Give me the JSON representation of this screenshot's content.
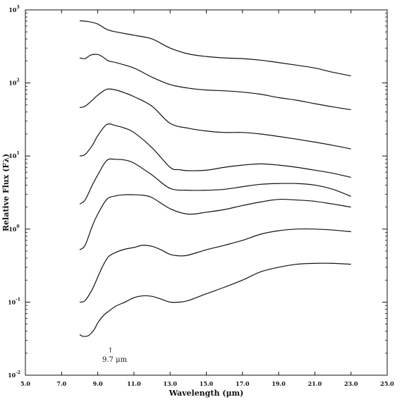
{
  "chart_data": {
    "type": "line",
    "title": "",
    "xlabel": "Wavelength (μm)",
    "ylabel": "Relative Flux (Fλ)",
    "xlim": [
      5.0,
      25.0
    ],
    "ylim_log10": [
      -2,
      3
    ],
    "y_scale": "log",
    "grid": false,
    "legend": "none",
    "x_ticks": [
      "5.0",
      "7.0",
      "9.0",
      "11.0",
      "13.0",
      "15.0",
      "17.0",
      "19.0",
      "21.0",
      "23.0",
      "25.0"
    ],
    "y_ticks": [
      {
        "base": "10",
        "exp": "-2",
        "value": 0.01
      },
      {
        "base": "10",
        "exp": "-1",
        "value": 0.1
      },
      {
        "base": "10",
        "exp": "0",
        "value": 1
      },
      {
        "base": "10",
        "exp": "1",
        "value": 10
      },
      {
        "base": "10",
        "exp": "2",
        "value": 100
      },
      {
        "base": "10",
        "exp": "3",
        "value": 1000
      }
    ],
    "annotation": {
      "text": "9.7 μm",
      "arrow": "↑",
      "x": 9.7
    },
    "series": [
      {
        "x": [
          8.0,
          8.5,
          9.0,
          9.5,
          10.0,
          11.0,
          12.0,
          13.0,
          14.0,
          15.0,
          16.0,
          17.0,
          18.0,
          19.0,
          20.0,
          21.0,
          22.0,
          23.0
        ],
        "y": [
          710,
          690,
          640,
          540,
          500,
          450,
          400,
          300,
          250,
          230,
          220,
          215,
          205,
          190,
          175,
          160,
          140,
          125
        ]
      },
      {
        "x": [
          8.0,
          8.3,
          8.6,
          9.0,
          9.3,
          9.6,
          10.0,
          11.0,
          12.0,
          13.0,
          14.0,
          15.0,
          16.0,
          17.0,
          18.0,
          19.0,
          20.0,
          21.0,
          22.0,
          23.0
        ],
        "y": [
          220,
          215,
          240,
          245,
          225,
          200,
          190,
          160,
          120,
          95,
          85,
          80,
          78,
          75,
          70,
          63,
          58,
          52,
          47,
          43
        ]
      },
      {
        "x": [
          8.0,
          8.3,
          8.7,
          9.0,
          9.5,
          10.0,
          10.5,
          11.0,
          12.0,
          13.0,
          14.0,
          15.0,
          16.0,
          17.0,
          18.0,
          19.0,
          20.0,
          21.0,
          22.0,
          23.0
        ],
        "y": [
          46,
          48,
          58,
          68,
          82,
          80,
          73,
          65,
          48,
          28,
          24,
          22,
          21,
          21,
          20,
          18.5,
          17,
          15.5,
          14,
          12.5
        ]
      },
      {
        "x": [
          8.0,
          8.3,
          8.7,
          9.0,
          9.5,
          10.0,
          10.5,
          11.0,
          12.0,
          13.0,
          13.5,
          14.0,
          15.0,
          16.0,
          17.0,
          18.0,
          19.0,
          20.0,
          21.0,
          22.0,
          23.0
        ],
        "y": [
          10,
          10.5,
          14,
          19,
          27,
          26,
          24,
          21,
          13,
          7,
          6.5,
          6.3,
          6.4,
          7.0,
          7.5,
          7.8,
          7.5,
          7.0,
          6.4,
          5.8,
          5.1
        ]
      },
      {
        "x": [
          8.0,
          8.3,
          8.7,
          9.0,
          9.5,
          10.0,
          10.5,
          11.0,
          12.0,
          13.0,
          14.0,
          15.0,
          16.0,
          17.0,
          18.0,
          19.0,
          20.0,
          21.0,
          22.0,
          23.0
        ],
        "y": [
          2.2,
          2.5,
          4.0,
          5.5,
          8.7,
          9.0,
          8.8,
          8.0,
          5.5,
          3.6,
          3.4,
          3.4,
          3.5,
          3.8,
          4.1,
          4.2,
          4.2,
          4.0,
          3.5,
          2.8
        ]
      },
      {
        "x": [
          8.0,
          8.3,
          8.7,
          9.0,
          9.5,
          10.0,
          10.5,
          11.0,
          11.5,
          12.0,
          13.0,
          14.0,
          15.0,
          16.0,
          17.0,
          18.0,
          19.0,
          20.0,
          21.0,
          22.0,
          23.0
        ],
        "y": [
          0.52,
          0.6,
          1.1,
          1.6,
          2.55,
          2.85,
          2.95,
          2.95,
          2.9,
          2.7,
          1.9,
          1.6,
          1.7,
          1.85,
          2.1,
          2.35,
          2.55,
          2.5,
          2.4,
          2.2,
          2.0
        ]
      },
      {
        "x": [
          8.0,
          8.3,
          8.7,
          9.0,
          9.3,
          9.6,
          10.0,
          10.5,
          11.0,
          11.5,
          12.0,
          12.5,
          13.0,
          13.5,
          14.0,
          15.0,
          16.0,
          17.0,
          18.0,
          19.0,
          20.0,
          21.0,
          22.0,
          23.0
        ],
        "y": [
          0.1,
          0.105,
          0.15,
          0.22,
          0.32,
          0.42,
          0.48,
          0.53,
          0.56,
          0.6,
          0.58,
          0.52,
          0.45,
          0.43,
          0.44,
          0.52,
          0.6,
          0.7,
          0.85,
          0.95,
          1.0,
          1.0,
          0.97,
          0.92
        ]
      },
      {
        "x": [
          8.0,
          8.2,
          8.5,
          8.8,
          9.0,
          9.3,
          9.6,
          10.0,
          10.5,
          11.0,
          11.5,
          12.0,
          12.5,
          13.0,
          13.5,
          14.0,
          15.0,
          16.0,
          17.0,
          18.0,
          19.0,
          20.0,
          21.0,
          22.0,
          23.0
        ],
        "y": [
          0.036,
          0.034,
          0.035,
          0.042,
          0.052,
          0.065,
          0.075,
          0.088,
          0.1,
          0.115,
          0.122,
          0.12,
          0.11,
          0.1,
          0.1,
          0.105,
          0.13,
          0.16,
          0.2,
          0.26,
          0.3,
          0.33,
          0.34,
          0.34,
          0.33
        ]
      }
    ]
  }
}
